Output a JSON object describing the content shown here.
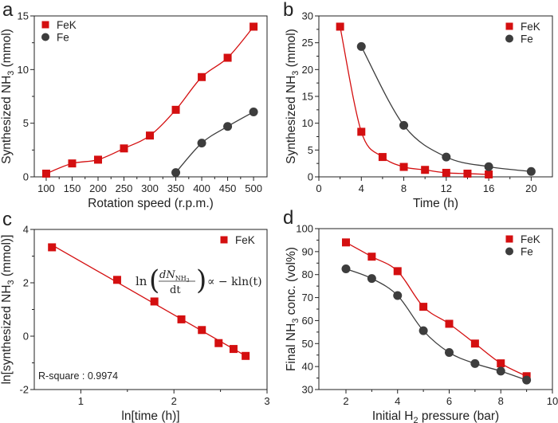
{
  "colors": {
    "FeK": "#d40f10",
    "Fe": "#3d3d3d",
    "axis": "#222222"
  },
  "chart_data": [
    {
      "panel": "a",
      "type": "line",
      "xlabel": {
        "pre": "Rotation speed (r.p.m.)",
        "sub": "",
        "post": ""
      },
      "ylabel": {
        "pre": "Synthesized NH",
        "sub": "3",
        "post": " (mmol)"
      },
      "xlim": [
        77,
        526
      ],
      "ylim": [
        0,
        15
      ],
      "xticks": [
        100,
        150,
        200,
        250,
        300,
        350,
        400,
        450,
        500
      ],
      "xtick_labels": [
        "100",
        "150",
        "200",
        "250",
        "300",
        "350",
        "400",
        "450",
        "500"
      ],
      "yticks": [
        0,
        5,
        10,
        15
      ],
      "ytick_labels": [
        "0",
        "5",
        "10",
        "15"
      ],
      "legend": "top-left",
      "series": [
        {
          "name": "FeK",
          "marker": "square",
          "x": [
            100,
            150,
            200,
            250,
            300,
            350,
            400,
            450,
            500
          ],
          "y": [
            0.3,
            1.25,
            1.6,
            2.65,
            3.85,
            6.25,
            9.3,
            11.1,
            14.0
          ]
        },
        {
          "name": "Fe",
          "marker": "circle",
          "x": [
            350,
            400,
            450,
            500
          ],
          "y": [
            0.4,
            3.15,
            4.7,
            6.05
          ]
        }
      ]
    },
    {
      "panel": "b",
      "type": "line",
      "xlabel": {
        "pre": "Time (h)",
        "sub": "",
        "post": ""
      },
      "ylabel": {
        "pre": "Synthesized NH",
        "sub": "3",
        "post": " (mmol)"
      },
      "xlim": [
        0,
        22
      ],
      "ylim": [
        0,
        30
      ],
      "xticks": [
        0,
        4,
        8,
        12,
        16,
        20
      ],
      "xtick_labels": [
        "0",
        "4",
        "8",
        "12",
        "16",
        "20"
      ],
      "yticks": [
        0,
        5,
        10,
        15,
        20,
        25,
        30
      ],
      "ytick_labels": [
        "0",
        "5",
        "10",
        "15",
        "20",
        "25",
        "30"
      ],
      "legend": "top-right",
      "series": [
        {
          "name": "FeK",
          "marker": "square",
          "x": [
            2,
            4,
            6,
            8,
            10,
            12,
            14,
            16
          ],
          "y": [
            28.0,
            8.4,
            3.7,
            1.85,
            1.3,
            0.75,
            0.6,
            0.45
          ]
        },
        {
          "name": "Fe",
          "marker": "circle",
          "x": [
            4,
            8,
            12,
            16,
            20
          ],
          "y": [
            24.3,
            9.6,
            3.7,
            1.9,
            1.0
          ]
        }
      ]
    },
    {
      "panel": "c",
      "type": "scatter",
      "xlabel": {
        "pre": "ln[time (h)]",
        "sub": "",
        "post": ""
      },
      "ylabel": {
        "pre": "ln[synthesized NH",
        "sub": "3",
        "post": " (mmol)]"
      },
      "xlim": [
        0.5,
        3
      ],
      "ylim": [
        -2,
        4
      ],
      "xticks": [
        1,
        2,
        3
      ],
      "xtick_labels": [
        "1",
        "2",
        "3"
      ],
      "yticks": [
        -2,
        0,
        2,
        4
      ],
      "ytick_labels": [
        "-2",
        "0",
        "2",
        "4"
      ],
      "legend": "top-right",
      "fit": "linear",
      "annotation": "R-square : 0.9974",
      "equation": {
        "ln": "ln",
        "num": "dN",
        "num_sub": "NH",
        "num_sub2": "3",
        "den": "dt",
        "rhs": "∝  − kln(t)"
      },
      "series": [
        {
          "name": "FeK",
          "marker": "square",
          "x": [
            0.69,
            1.39,
            1.79,
            2.08,
            2.3,
            2.48,
            2.64,
            2.77
          ],
          "y": [
            3.33,
            2.11,
            1.3,
            0.63,
            0.23,
            -0.26,
            -0.48,
            -0.74
          ]
        }
      ]
    },
    {
      "panel": "d",
      "type": "line",
      "xlabel": {
        "pre": "Initial H",
        "sub": "2",
        "post": " pressure (bar)"
      },
      "ylabel": {
        "pre": "Final NH",
        "sub": "3",
        "post": " conc. (vol%)"
      },
      "xlim": [
        0.95,
        10
      ],
      "ylim": [
        30,
        100
      ],
      "xticks": [
        2,
        4,
        6,
        8,
        10
      ],
      "xtick_labels": [
        "2",
        "4",
        "6",
        "8",
        "10"
      ],
      "yticks": [
        30,
        40,
        50,
        60,
        70,
        80,
        90,
        100
      ],
      "ytick_labels": [
        "30",
        "40",
        "50",
        "60",
        "70",
        "80",
        "90",
        "100"
      ],
      "legend": "top-right",
      "series": [
        {
          "name": "FeK",
          "marker": "square",
          "x": [
            2,
            3,
            4,
            5,
            6,
            7,
            8,
            9
          ],
          "y": [
            94.0,
            87.8,
            81.5,
            66.0,
            58.6,
            50.0,
            41.4,
            35.8
          ]
        },
        {
          "name": "Fe",
          "marker": "circle",
          "x": [
            2,
            3,
            4,
            5,
            6,
            7,
            8,
            9
          ],
          "y": [
            82.5,
            78.3,
            70.9,
            55.6,
            46.1,
            41.3,
            38.0,
            34.1
          ]
        }
      ]
    }
  ]
}
